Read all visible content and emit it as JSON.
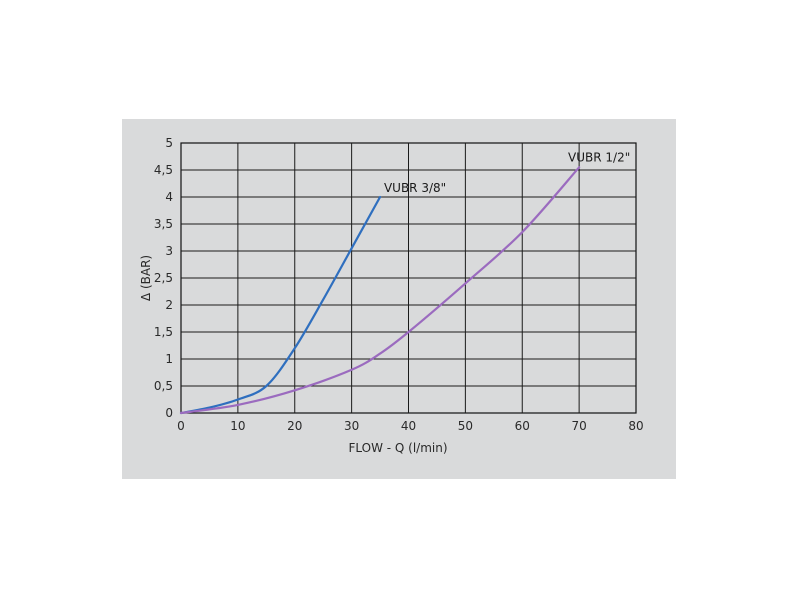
{
  "chart_data": {
    "type": "line",
    "xlabel": "FLOW - Q (l/min)",
    "ylabel": "Δ (BAR)",
    "xlim": [
      0,
      80
    ],
    "ylim": [
      0,
      5
    ],
    "x_ticks": [
      "0",
      "10",
      "20",
      "30",
      "40",
      "50",
      "60",
      "70",
      "80"
    ],
    "y_ticks": [
      "0",
      "0,5",
      "1",
      "1,5",
      "2",
      "2,5",
      "3",
      "3,5",
      "4",
      "4,5",
      "5"
    ],
    "grid": true,
    "series": [
      {
        "name": "VUBR 3/8\"",
        "color": "#2f6fbf",
        "points": [
          [
            0,
            0
          ],
          [
            5,
            0.1
          ],
          [
            10,
            0.25
          ],
          [
            15,
            0.5
          ],
          [
            20,
            1.2
          ],
          [
            25,
            2.1
          ],
          [
            30,
            3.05
          ],
          [
            35,
            4.0
          ]
        ]
      },
      {
        "name": "VUBR 1/2\"",
        "color": "#9b6bbf",
        "points": [
          [
            0,
            0
          ],
          [
            10,
            0.15
          ],
          [
            20,
            0.42
          ],
          [
            30,
            0.8
          ],
          [
            35,
            1.1
          ],
          [
            40,
            1.5
          ],
          [
            50,
            2.4
          ],
          [
            60,
            3.35
          ],
          [
            70,
            4.55
          ]
        ]
      }
    ]
  }
}
